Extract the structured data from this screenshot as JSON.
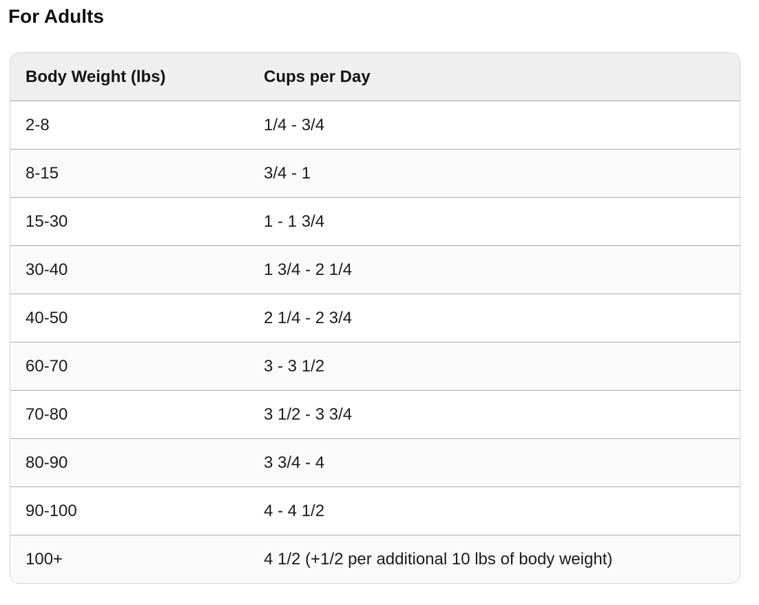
{
  "page": {
    "title": "For Adults"
  },
  "table": {
    "columns": [
      "Body Weight (lbs)",
      "Cups per Day"
    ],
    "rows": [
      [
        "2-8",
        "1/4 - 3/4"
      ],
      [
        "8-15",
        "3/4 - 1"
      ],
      [
        "15-30",
        "1 - 1 3/4"
      ],
      [
        "30-40",
        "1 3/4 - 2 1/4"
      ],
      [
        "40-50",
        "2 1/4 - 2 3/4"
      ],
      [
        "60-70",
        "3 - 3 1/2"
      ],
      [
        "70-80",
        "3 1/2 - 3 3/4"
      ],
      [
        "80-90",
        "3 3/4 - 4"
      ],
      [
        "90-100",
        "4 - 4 1/2"
      ],
      [
        "100+",
        "4 1/2 (+1/2 per additional 10 lbs of body weight)"
      ]
    ]
  },
  "colors": {
    "header_bg": "#f0eff0",
    "alt_row_bg": "#fafafa",
    "row_divider": "#ababab",
    "card_border": "#d5d4d6",
    "text": "#1c1c1e"
  }
}
